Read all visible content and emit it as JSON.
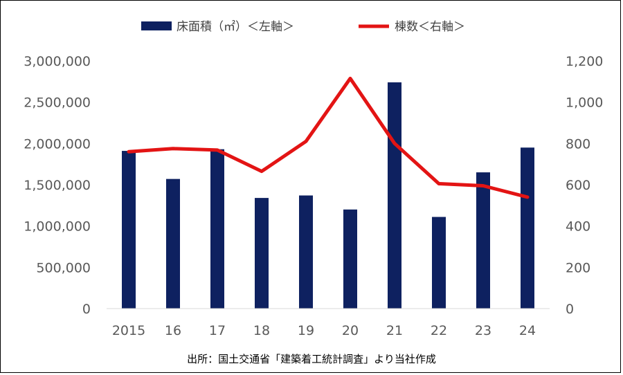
{
  "chart_data": {
    "type": "bar",
    "categories": [
      "2015",
      "16",
      "17",
      "18",
      "19",
      "20",
      "21",
      "22",
      "23",
      "24"
    ],
    "series": [
      {
        "name": "床面積（㎡）＜左軸＞",
        "type": "bar",
        "axis": "left",
        "color": "#0E2160",
        "values": [
          1910000,
          1570000,
          1930000,
          1340000,
          1370000,
          1200000,
          2740000,
          1110000,
          1650000,
          1950000
        ]
      },
      {
        "name": "棟数＜右軸＞",
        "type": "line",
        "axis": "right",
        "color": "#E31414",
        "values": [
          760,
          775,
          768,
          665,
          810,
          1115,
          800,
          605,
          595,
          540
        ]
      }
    ],
    "y_left": {
      "min": 0,
      "max": 3000000,
      "step": 500000,
      "tick_labels": [
        "0",
        "500,000",
        "1,000,000",
        "1,500,000",
        "2,000,000",
        "2,500,000",
        "3,000,000"
      ]
    },
    "y_right": {
      "min": 0,
      "max": 1200,
      "step": 200,
      "tick_labels": [
        "0",
        "200",
        "400",
        "600",
        "800",
        "1,000",
        "1,200"
      ]
    },
    "legend_position": "top-center",
    "grid": false,
    "source_note": "出所：国土交通省「建築着工統計調査」より当社作成"
  }
}
